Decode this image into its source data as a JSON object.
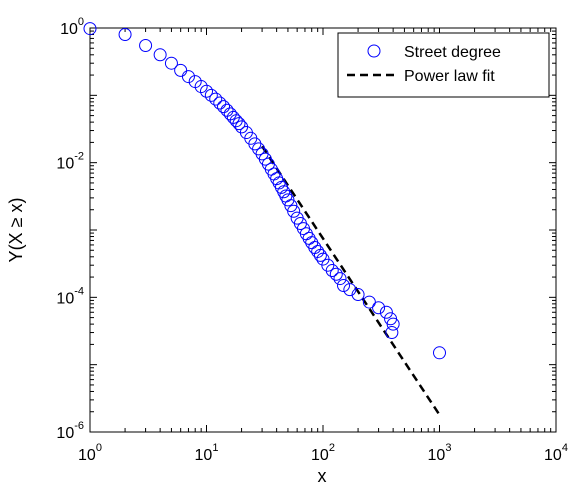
{
  "chart_data": {
    "type": "scatter",
    "xscale": "log",
    "yscale": "log",
    "xlim": [
      1,
      10000
    ],
    "ylim": [
      1e-06,
      1
    ],
    "xlabel": "x",
    "ylabel": "Y(X ≥ x)",
    "grid": false,
    "legend_position": "top-right",
    "x_ticks": [
      {
        "base": "10",
        "exp": "0",
        "value": 1
      },
      {
        "base": "10",
        "exp": "1",
        "value": 10
      },
      {
        "base": "10",
        "exp": "2",
        "value": 100
      },
      {
        "base": "10",
        "exp": "3",
        "value": 1000
      },
      {
        "base": "10",
        "exp": "4",
        "value": 10000
      }
    ],
    "y_ticks": [
      {
        "base": "10",
        "exp": "0",
        "value": 1
      },
      {
        "base": "10",
        "exp": "-2",
        "value": 0.01
      },
      {
        "base": "10",
        "exp": "-4",
        "value": 0.0001
      },
      {
        "base": "10",
        "exp": "-6",
        "value": 1e-06
      }
    ],
    "series": [
      {
        "name": "Street degree",
        "marker": "circle-open",
        "color": "#0000ff",
        "points": [
          [
            1,
            0.98
          ],
          [
            2,
            0.8
          ],
          [
            3,
            0.55
          ],
          [
            4,
            0.4
          ],
          [
            5,
            0.3
          ],
          [
            6,
            0.235
          ],
          [
            7,
            0.19
          ],
          [
            8,
            0.16
          ],
          [
            9,
            0.135
          ],
          [
            10,
            0.115
          ],
          [
            11,
            0.1
          ],
          [
            12,
            0.088
          ],
          [
            13,
            0.077
          ],
          [
            14,
            0.068
          ],
          [
            15,
            0.06
          ],
          [
            16,
            0.053
          ],
          [
            17,
            0.047
          ],
          [
            18,
            0.042
          ],
          [
            19,
            0.038
          ],
          [
            20,
            0.034
          ],
          [
            22,
            0.028
          ],
          [
            24,
            0.023
          ],
          [
            26,
            0.019
          ],
          [
            28,
            0.016
          ],
          [
            30,
            0.0135
          ],
          [
            32,
            0.0113
          ],
          [
            34,
            0.0095
          ],
          [
            36,
            0.008
          ],
          [
            38,
            0.0068
          ],
          [
            40,
            0.0058
          ],
          [
            42,
            0.005
          ],
          [
            44,
            0.0043
          ],
          [
            46,
            0.0037
          ],
          [
            48,
            0.0032
          ],
          [
            50,
            0.0028
          ],
          [
            53,
            0.0023
          ],
          [
            56,
            0.0019
          ],
          [
            60,
            0.0015
          ],
          [
            64,
            0.00125
          ],
          [
            68,
            0.00105
          ],
          [
            72,
            0.00088
          ],
          [
            76,
            0.00075
          ],
          [
            80,
            0.00065
          ],
          [
            85,
            0.00055
          ],
          [
            90,
            0.00048
          ],
          [
            95,
            0.00042
          ],
          [
            100,
            0.00037
          ],
          [
            110,
            0.0003
          ],
          [
            120,
            0.00025
          ],
          [
            130,
            0.00022
          ],
          [
            140,
            0.00019
          ],
          [
            150,
            0.00015
          ],
          [
            170,
            0.00013
          ],
          [
            200,
            0.00011
          ],
          [
            250,
            8.5e-05
          ],
          [
            300,
            7e-05
          ],
          [
            350,
            6e-05
          ],
          [
            380,
            4.8e-05
          ],
          [
            400,
            4e-05
          ],
          [
            390,
            3e-05
          ],
          [
            1000,
            1.5e-05
          ]
        ]
      },
      {
        "name": "Power law fit",
        "line_style": "dashed",
        "color": "#000000",
        "points": [
          [
            30,
            0.0175
          ],
          [
            1000,
            1.8e-06
          ]
        ]
      }
    ]
  }
}
